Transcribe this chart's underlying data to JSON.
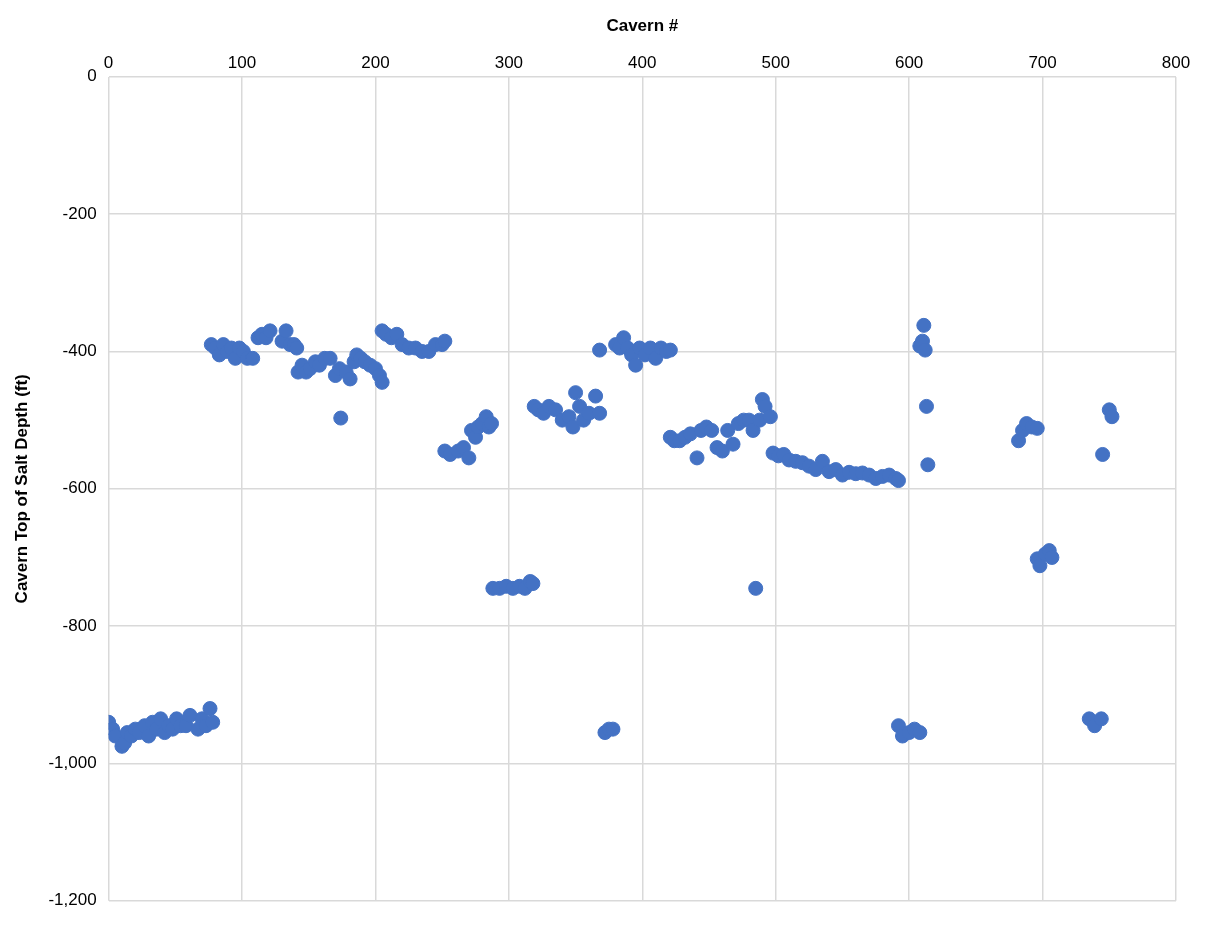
{
  "chart_data": {
    "type": "scatter",
    "xlabel": "Cavern #",
    "ylabel": "Cavern Top of Salt Depth (ft)",
    "xlim": [
      0,
      800
    ],
    "xticks": [
      0,
      100,
      200,
      300,
      400,
      500,
      600,
      700,
      800
    ],
    "ylim": [
      -1200,
      0
    ],
    "yticks": [
      {
        "value": -1200,
        "label": "-1,200"
      },
      {
        "value": -1000,
        "label": "-1,000"
      },
      -800,
      -600,
      -400,
      -200,
      0
    ],
    "grid": true,
    "legend": false,
    "marker": "circle",
    "series": [
      {
        "color": "#4472c4",
        "x": [
          0,
          3,
          5,
          10,
          12,
          14,
          17,
          20,
          23,
          27,
          30,
          33,
          36,
          39,
          42,
          45,
          48,
          51,
          54,
          58,
          61,
          67,
          70,
          73,
          76,
          78,
          77,
          80,
          83,
          86,
          89,
          92,
          95,
          98,
          101,
          104,
          108,
          112,
          115,
          118,
          121,
          130,
          133,
          136,
          139,
          141,
          142,
          145,
          148,
          151,
          155,
          158,
          162,
          166,
          170,
          173,
          174,
          178,
          181,
          184,
          186,
          189,
          192,
          196,
          200,
          203,
          205,
          205,
          208,
          212,
          216,
          220,
          225,
          230,
          235,
          240,
          245,
          250,
          252,
          252,
          256,
          262,
          266,
          270,
          272,
          275,
          277,
          280,
          283,
          285,
          287,
          288,
          293,
          298,
          303,
          308,
          312,
          316,
          318,
          319,
          322,
          326,
          330,
          335,
          340,
          345,
          348,
          350,
          353,
          356,
          360,
          365,
          368,
          368,
          372,
          375,
          378,
          380,
          383,
          386,
          389,
          392,
          395,
          398,
          402,
          406,
          410,
          414,
          418,
          421,
          421,
          424,
          428,
          432,
          436,
          441,
          444,
          448,
          452,
          456,
          460,
          464,
          468,
          472,
          476,
          480,
          483,
          485,
          488,
          490,
          492,
          496,
          498,
          502,
          506,
          510,
          515,
          520,
          525,
          530,
          535,
          540,
          545,
          550,
          555,
          560,
          565,
          570,
          575,
          580,
          585,
          590,
          592,
          592,
          595,
          600,
          604,
          608,
          608,
          610,
          611,
          612,
          613,
          614,
          682,
          685,
          688,
          692,
          696,
          696,
          698,
          702,
          705,
          707,
          735,
          739,
          744,
          745,
          750,
          752
        ],
        "values": [
          -940,
          -950,
          -960,
          -975,
          -970,
          -955,
          -960,
          -950,
          -955,
          -945,
          -960,
          -940,
          -950,
          -935,
          -955,
          -945,
          -950,
          -935,
          -945,
          -945,
          -930,
          -950,
          -935,
          -945,
          -920,
          -940,
          -390,
          -395,
          -405,
          -390,
          -400,
          -395,
          -410,
          -395,
          -400,
          -410,
          -410,
          -380,
          -375,
          -380,
          -370,
          -385,
          -370,
          -390,
          -390,
          -395,
          -430,
          -420,
          -430,
          -425,
          -415,
          -420,
          -410,
          -410,
          -435,
          -425,
          -497,
          -430,
          -440,
          -415,
          -405,
          -410,
          -415,
          -420,
          -425,
          -435,
          -445,
          -370,
          -375,
          -380,
          -375,
          -390,
          -395,
          -395,
          -400,
          -400,
          -390,
          -390,
          -385,
          -545,
          -550,
          -545,
          -540,
          -555,
          -515,
          -525,
          -510,
          -505,
          -495,
          -510,
          -505,
          -745,
          -745,
          -742,
          -745,
          -742,
          -745,
          -735,
          -738,
          -480,
          -485,
          -490,
          -480,
          -485,
          -500,
          -495,
          -510,
          -460,
          -480,
          -500,
          -490,
          -465,
          -490,
          -398,
          -955,
          -950,
          -950,
          -390,
          -395,
          -380,
          -395,
          -405,
          -420,
          -395,
          -405,
          -395,
          -410,
          -395,
          -400,
          -398,
          -525,
          -530,
          -530,
          -525,
          -520,
          -555,
          -515,
          -510,
          -515,
          -540,
          -545,
          -515,
          -535,
          -505,
          -500,
          -500,
          -515,
          -745,
          -500,
          -470,
          -480,
          -495,
          -548,
          -552,
          -550,
          -558,
          -560,
          -562,
          -567,
          -572,
          -560,
          -575,
          -572,
          -580,
          -576,
          -578,
          -577,
          -580,
          -585,
          -582,
          -580,
          -585,
          -588,
          -945,
          -960,
          -955,
          -950,
          -955,
          -392,
          -385,
          -362,
          -398,
          -480,
          -565,
          -530,
          -515,
          -505,
          -510,
          -512,
          -702,
          -712,
          -695,
          -690,
          -700,
          -935,
          -945,
          -935,
          -550,
          -485,
          -495
        ]
      }
    ]
  }
}
